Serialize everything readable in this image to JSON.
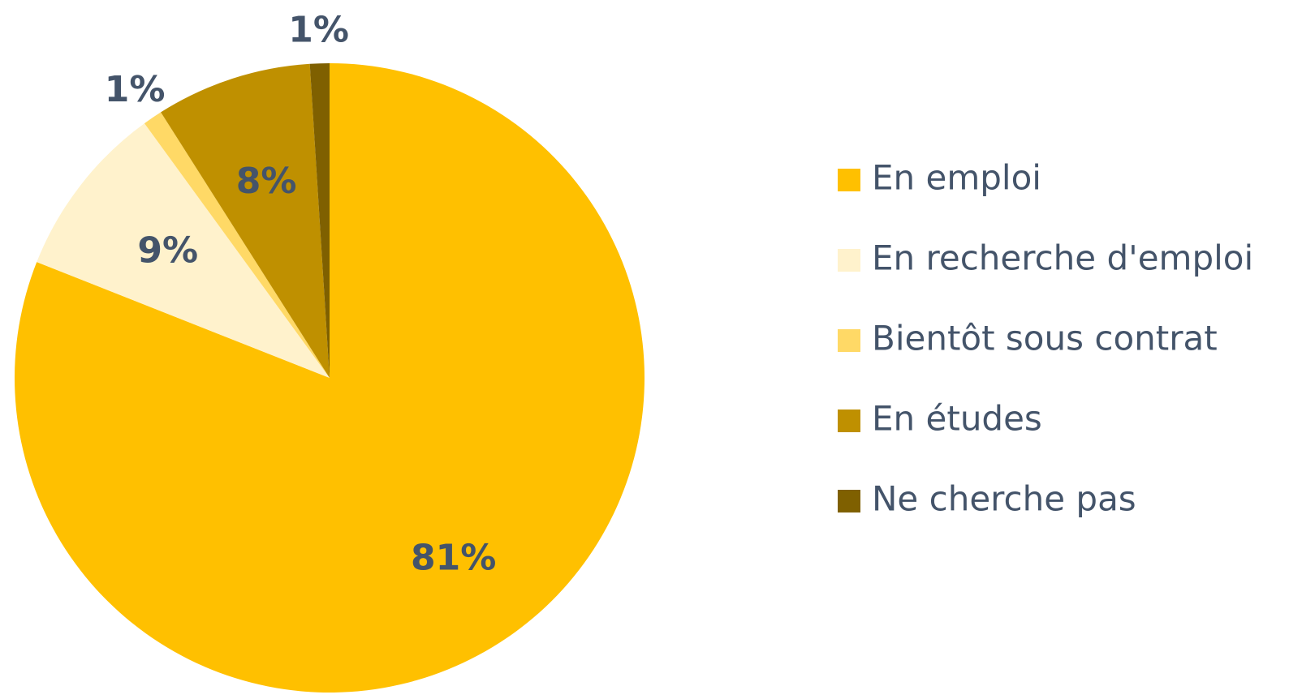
{
  "chart_data": {
    "type": "pie",
    "categories": [
      "En emploi",
      "En recherche d'emploi",
      "Bientôt sous contrat",
      "En études",
      "Ne cherche pas"
    ],
    "values": [
      81,
      9,
      1,
      8,
      1
    ],
    "value_labels": [
      "81%",
      "9%",
      "1%",
      "8%",
      "1%"
    ],
    "colors": [
      "#FFC000",
      "#FFF2CC",
      "#FFD966",
      "#BF9000",
      "#7F6000"
    ],
    "legend": "right"
  }
}
